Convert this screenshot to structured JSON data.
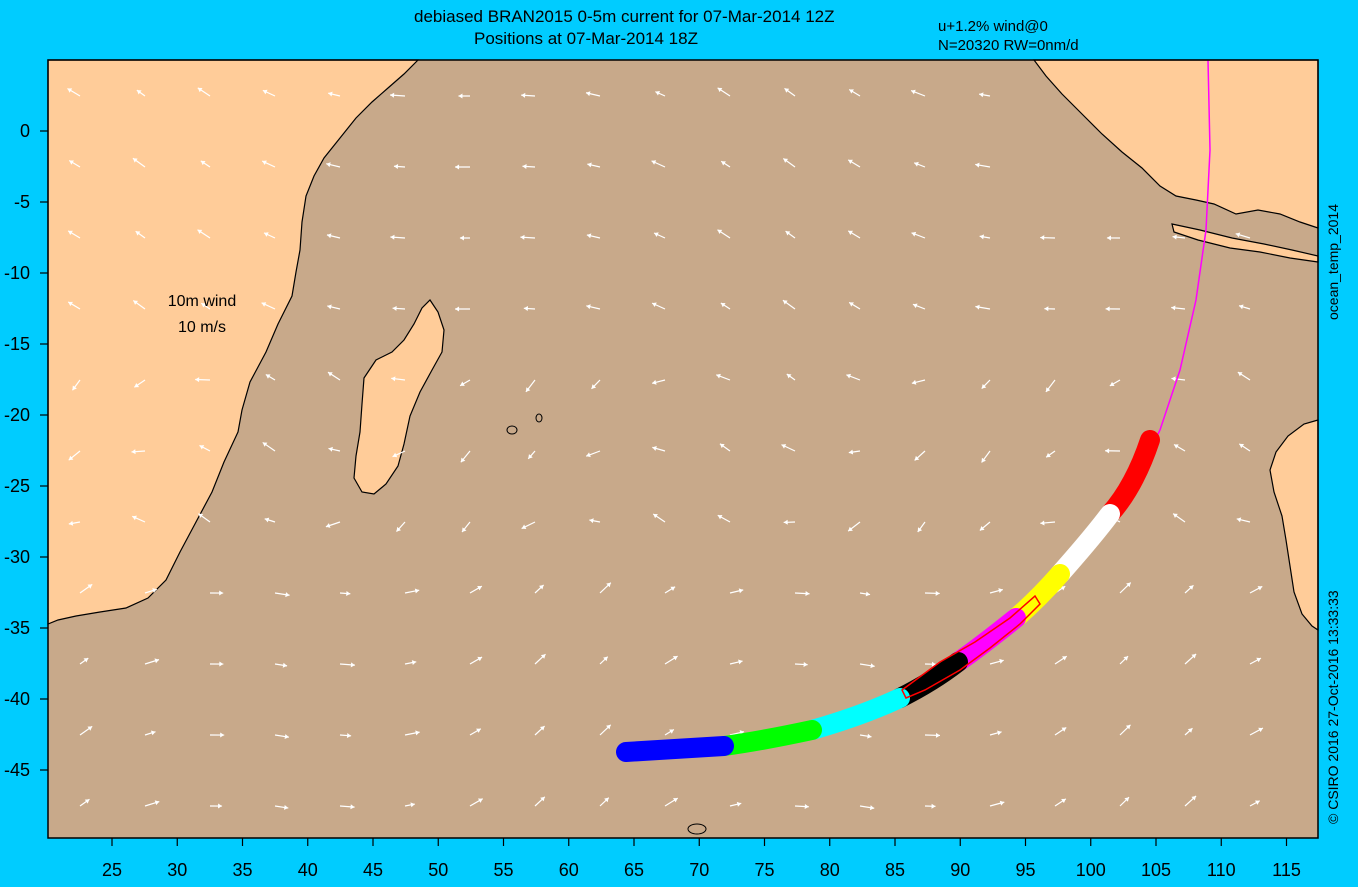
{
  "header": {
    "title_line1": "debiased BRAN2015 0-5m current for 07-Mar-2014 12Z",
    "title_line2": "Positions at 07-Mar-2014 18Z",
    "params_line1": "u+1.2% wind@0",
    "params_line2": "N=20320 RW=0nm/d"
  },
  "side_labels": {
    "right_top": "ocean_temp_2014",
    "right_bottom": "© CSIRO 2016   27-Oct-2016 13:33:33"
  },
  "legend": {
    "line1": "10m wind",
    "line2": "10 m/s"
  },
  "map": {
    "x_ticks": [
      "25",
      "30",
      "35",
      "40",
      "45",
      "50",
      "55",
      "60",
      "65",
      "70",
      "75",
      "80",
      "85",
      "90",
      "95",
      "100",
      "105",
      "110",
      "115"
    ],
    "y_ticks": [
      "0",
      "-5",
      "-10",
      "-15",
      "-20",
      "-25",
      "-30",
      "-35",
      "-40",
      "-45"
    ],
    "colors": {
      "ocean": "#c8a98a",
      "land": "#ffcc99",
      "frame": "#00ccff",
      "arrows": "#ffffff",
      "drift_path": "#ff00ff"
    },
    "drift_segments": [
      {
        "name": "red",
        "color": "#ff0000"
      },
      {
        "name": "white",
        "color": "#ffffff"
      },
      {
        "name": "yellow",
        "color": "#ffff00"
      },
      {
        "name": "magenta",
        "color": "#ff00ff"
      },
      {
        "name": "black",
        "color": "#000000"
      },
      {
        "name": "cyan",
        "color": "#00ffff"
      },
      {
        "name": "green",
        "color": "#00ff00"
      },
      {
        "name": "blue",
        "color": "#0000ff"
      }
    ]
  }
}
